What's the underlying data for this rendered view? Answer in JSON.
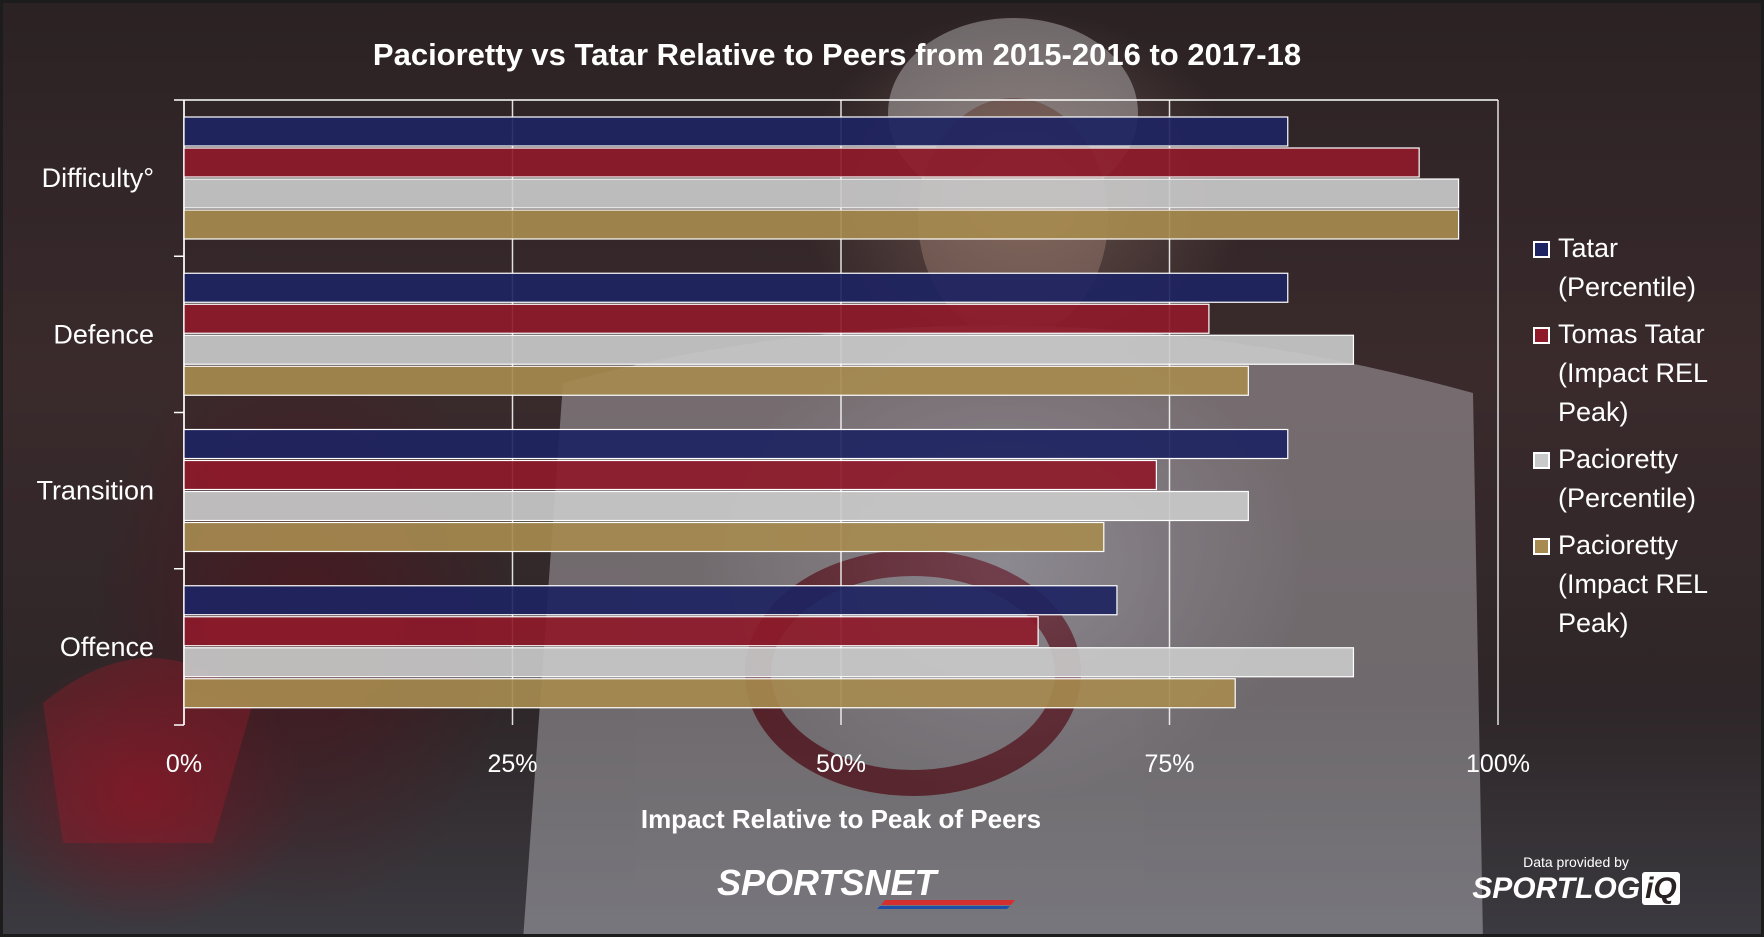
{
  "chart_data": {
    "type": "bar",
    "orientation": "horizontal",
    "title": "Pacioretty vs Tatar Relative to Peers from 2015-2016 to 2017-18",
    "xlabel": "Impact Relative to Peak of Peers",
    "ylabel": "",
    "xlim": [
      0,
      100
    ],
    "x_ticks": [
      "0%",
      "25%",
      "50%",
      "75%",
      "100%"
    ],
    "categories": [
      "Difficulty°",
      "Defence",
      "Transition",
      "Offence"
    ],
    "series": [
      {
        "name": "Tatar (Percentile)",
        "color": "#1e2462",
        "values": [
          84,
          84,
          84,
          71
        ]
      },
      {
        "name": "Tomas Tatar (Impact REL Peak)",
        "color": "#8e1a2a",
        "values": [
          94,
          78,
          74,
          65
        ]
      },
      {
        "name": "Pacioretty (Percentile)",
        "color": "#c9c9c9",
        "values": [
          97,
          89,
          81,
          89
        ]
      },
      {
        "name": "Pacioretty (Impact REL Peak)",
        "color": "#a68a4f",
        "values": [
          97,
          81,
          70,
          80
        ]
      }
    ],
    "legend_position": "right",
    "grid": true
  },
  "legend": [
    {
      "lines": [
        "Tatar",
        "(Percentile)"
      ],
      "color": "#1e2462"
    },
    {
      "lines": [
        "Tomas Tatar",
        "(Impact REL",
        "Peak)"
      ],
      "color": "#8e1a2a"
    },
    {
      "lines": [
        "Pacioretty",
        "(Percentile)"
      ],
      "color": "#c9c9c9"
    },
    {
      "lines": [
        "Pacioretty",
        "(Impact REL",
        "Peak)"
      ],
      "color": "#a68a4f"
    }
  ],
  "branding": {
    "sportsnet_logo": "SPORTSNET",
    "credit_text": "Data provided by",
    "credit_logo_main": "SPORTLOG",
    "credit_logo_iq": "iQ"
  }
}
